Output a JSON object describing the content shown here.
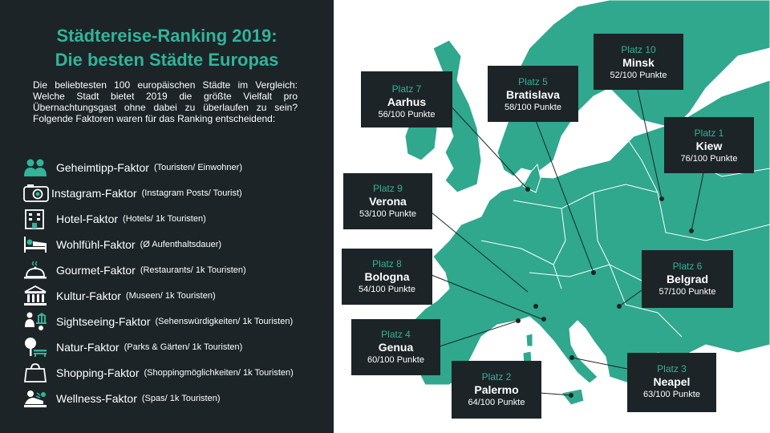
{
  "title_line1": "Städtereise-Ranking 2019:",
  "title_line2": "Die besten Städte Europas",
  "intro": "Die beliebtesten 100 europäischen Städte im Vergleich: Welche Stadt bietet 2019 die größte Vielfalt pro Übernachtungsgast ohne dabei zu überlaufen zu sein? Folgende Faktoren waren für das Ranking entscheidend:",
  "factors": [
    {
      "name": "Geheimtipp-Faktor",
      "desc": "(Touristen/ Einwohner)",
      "icon": "people-icon"
    },
    {
      "name": "Instagram-Faktor",
      "desc": "(Instagram Posts/ Tourist)",
      "icon": "camera-icon"
    },
    {
      "name": "Hotel-Faktor",
      "desc": "(Hotels/ 1k Touristen)",
      "icon": "hotel-icon"
    },
    {
      "name": "Wohlfühl-Faktor",
      "desc": "(Ø Aufenthaltsdauer)",
      "icon": "bed-icon"
    },
    {
      "name": "Gourmet-Faktor",
      "desc": "(Restaurants/ 1k Touristen)",
      "icon": "cloche-icon"
    },
    {
      "name": "Kultur-Faktor",
      "desc": "(Museen/ 1k Touristen)",
      "icon": "museum-icon"
    },
    {
      "name": "Sightseeing-Faktor",
      "desc": "(Sehenswürdigkeiten/ 1k Touristen)",
      "icon": "sightseeing-icon"
    },
    {
      "name": "Natur-Faktor",
      "desc": "(Parks & Gärten/ 1k Touristen)",
      "icon": "bench-tree-icon"
    },
    {
      "name": "Shopping-Faktor",
      "desc": "(Shoppingmöglichkeiten/ 1k Touristen)",
      "icon": "shopping-bag-icon"
    },
    {
      "name": "Wellness-Faktor",
      "desc": "(Spas/ 1k Touristen)",
      "icon": "spa-icon"
    }
  ],
  "cities": [
    {
      "rank": "Platz 1",
      "city": "Kiew",
      "points": "76/100 Punkte"
    },
    {
      "rank": "Platz 2",
      "city": "Palermo",
      "points": "64/100 Punkte"
    },
    {
      "rank": "Platz 3",
      "city": "Neapel",
      "points": "63/100 Punkte"
    },
    {
      "rank": "Platz 4",
      "city": "Genua",
      "points": "60/100 Punkte"
    },
    {
      "rank": "Platz 5",
      "city": "Bratislava",
      "points": "58/100 Punkte"
    },
    {
      "rank": "Platz 6",
      "city": "Belgrad",
      "points": "57/100 Punkte"
    },
    {
      "rank": "Platz 7",
      "city": "Aarhus",
      "points": "56/100 Punkte"
    },
    {
      "rank": "Platz 8",
      "city": "Bologna",
      "points": "54/100 Punkte"
    },
    {
      "rank": "Platz 9",
      "city": "Verona",
      "points": "53/100 Punkte"
    },
    {
      "rank": "Platz 10",
      "city": "Minsk",
      "points": "52/100 Punkte"
    }
  ],
  "colors": {
    "panel": "#1c2427",
    "accent": "#32b39a",
    "land": "#2fa88d",
    "border": "#ffffff"
  }
}
